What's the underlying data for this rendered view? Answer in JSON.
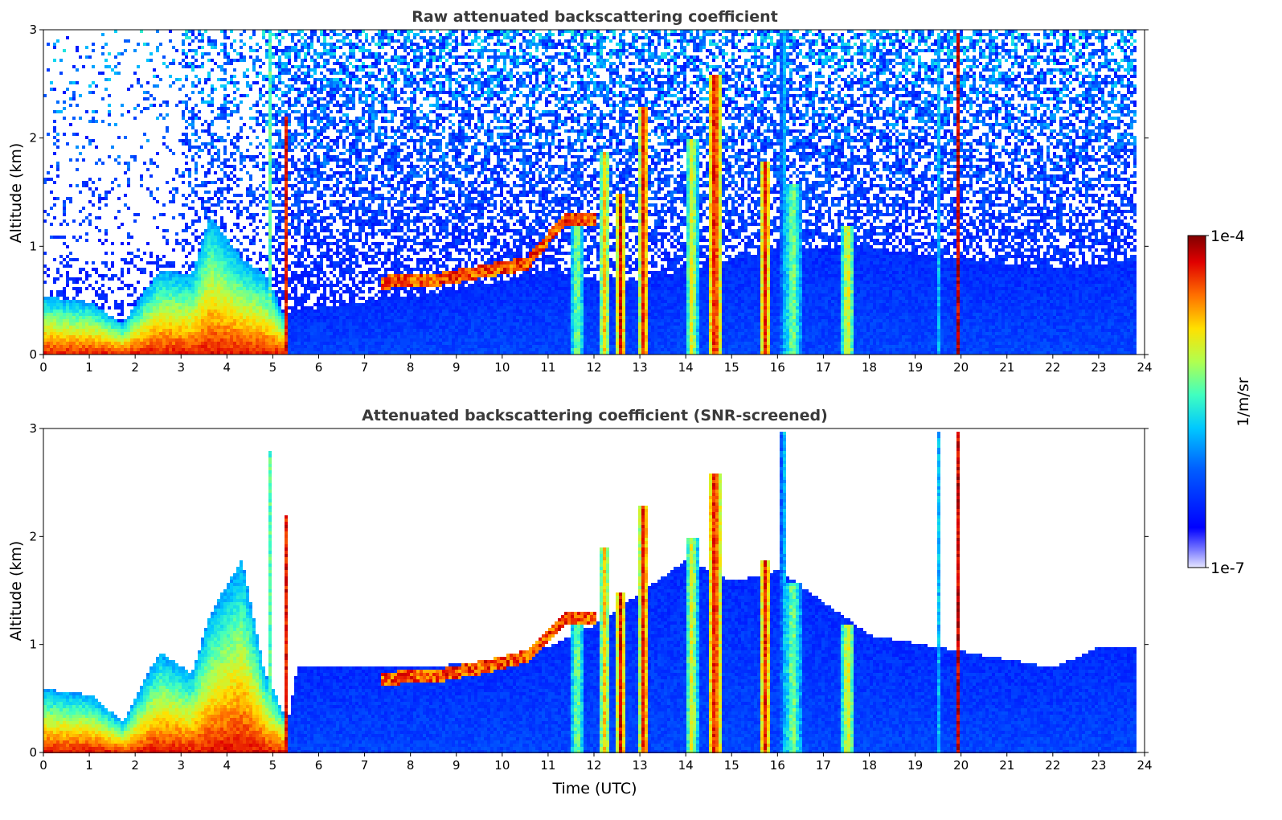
{
  "chart_data": [
    {
      "type": "heatmap",
      "title": "Raw attenuated backscattering coefficient",
      "xlabel": "",
      "ylabel": "Altitude (km)",
      "xlim": [
        0,
        24
      ],
      "ylim": [
        0,
        3
      ],
      "xticks": [
        "0",
        "1",
        "2",
        "3",
        "4",
        "5",
        "6",
        "7",
        "8",
        "9",
        "10",
        "11",
        "12",
        "13",
        "14",
        "15",
        "16",
        "17",
        "18",
        "19",
        "20",
        "21",
        "22",
        "23",
        "24"
      ],
      "yticks": [
        "0",
        "1",
        "2",
        "3"
      ],
      "noise": "high",
      "boundary_layer_top_km": [
        [
          0,
          0.55
        ],
        [
          1,
          0.5
        ],
        [
          1.7,
          0.3
        ],
        [
          2.5,
          0.8
        ],
        [
          3.2,
          0.75
        ],
        [
          3.6,
          1.3
        ],
        [
          4.3,
          0.9
        ],
        [
          4.8,
          0.75
        ],
        [
          5.2,
          0.4
        ],
        [
          6,
          0.45
        ],
        [
          8,
          0.55
        ],
        [
          10,
          0.7
        ],
        [
          11,
          0.8
        ],
        [
          12,
          0.7
        ],
        [
          13,
          0.7
        ],
        [
          14,
          0.8
        ],
        [
          15,
          0.9
        ],
        [
          16,
          1.0
        ],
        [
          17,
          1.0
        ],
        [
          18,
          1.0
        ],
        [
          20,
          0.9
        ],
        [
          22,
          0.8
        ],
        [
          24,
          0.9
        ]
      ],
      "cloud_base_layer": [
        [
          7.3,
          0.68
        ],
        [
          8.5,
          0.7
        ],
        [
          9.5,
          0.78
        ],
        [
          10.5,
          0.85
        ],
        [
          11.3,
          1.25
        ],
        [
          12.0,
          1.25
        ]
      ],
      "plumes": [
        {
          "t": 4.9,
          "top": 3.0,
          "w": 0.12,
          "lvl": 0.55
        },
        {
          "t": 5.25,
          "top": 2.2,
          "w": 0.1,
          "lvl": 0.95
        },
        {
          "t": 11.6,
          "top": 1.3,
          "w": 0.3,
          "lvl": 0.6
        },
        {
          "t": 12.2,
          "top": 1.9,
          "w": 0.25,
          "lvl": 0.75
        },
        {
          "t": 12.55,
          "top": 1.5,
          "w": 0.2,
          "lvl": 0.95
        },
        {
          "t": 13.05,
          "top": 2.3,
          "w": 0.2,
          "lvl": 0.95
        },
        {
          "t": 14.1,
          "top": 2.0,
          "w": 0.25,
          "lvl": 0.7
        },
        {
          "t": 14.6,
          "top": 2.6,
          "w": 0.3,
          "lvl": 0.95
        },
        {
          "t": 15.7,
          "top": 1.8,
          "w": 0.25,
          "lvl": 0.9
        },
        {
          "t": 16.3,
          "top": 1.6,
          "w": 0.35,
          "lvl": 0.6
        },
        {
          "t": 17.5,
          "top": 1.2,
          "w": 0.3,
          "lvl": 0.7
        },
        {
          "t": 16.1,
          "top": 3.0,
          "w": 0.12,
          "lvl": 0.45
        },
        {
          "t": 19.5,
          "top": 3.0,
          "w": 0.08,
          "lvl": 0.5
        },
        {
          "t": 19.9,
          "top": 3.0,
          "w": 0.05,
          "lvl": 0.95
        }
      ]
    },
    {
      "type": "heatmap",
      "title": "Attenuated backscattering coefficient (SNR-screened)",
      "xlabel": "Time (UTC)",
      "ylabel": "Altitude (km)",
      "xlim": [
        0,
        24
      ],
      "ylim": [
        0,
        3
      ],
      "xticks": [
        "0",
        "1",
        "2",
        "3",
        "4",
        "5",
        "6",
        "7",
        "8",
        "9",
        "10",
        "11",
        "12",
        "13",
        "14",
        "15",
        "16",
        "17",
        "18",
        "19",
        "20",
        "21",
        "22",
        "23",
        "24"
      ],
      "yticks": [
        "0",
        "1",
        "2",
        "3"
      ],
      "noise": "screened",
      "boundary_layer_top_km": [
        [
          0,
          0.6
        ],
        [
          1,
          0.55
        ],
        [
          1.7,
          0.3
        ],
        [
          2.5,
          0.95
        ],
        [
          3.2,
          0.75
        ],
        [
          3.6,
          1.3
        ],
        [
          4.3,
          1.8
        ],
        [
          4.8,
          0.75
        ],
        [
          5.3,
          0.3
        ],
        [
          5.5,
          0.8
        ],
        [
          7,
          0.8
        ],
        [
          8,
          0.8
        ],
        [
          9.5,
          0.85
        ],
        [
          10.5,
          0.95
        ],
        [
          11,
          1.0
        ],
        [
          12,
          1.2
        ],
        [
          13,
          1.5
        ],
        [
          14,
          1.8
        ],
        [
          15,
          1.6
        ],
        [
          16,
          1.7
        ],
        [
          17,
          1.4
        ],
        [
          18,
          1.1
        ],
        [
          20,
          0.95
        ],
        [
          22,
          0.8
        ],
        [
          23,
          1.0
        ],
        [
          24,
          1.0
        ]
      ],
      "cloud_base_layer": [
        [
          7.3,
          0.7
        ],
        [
          8.5,
          0.72
        ],
        [
          9.5,
          0.8
        ],
        [
          10.5,
          0.9
        ],
        [
          11.3,
          1.25
        ],
        [
          12.0,
          1.25
        ]
      ],
      "plumes": [
        {
          "t": 4.9,
          "top": 2.8,
          "w": 0.12,
          "lvl": 0.55
        },
        {
          "t": 5.25,
          "top": 2.2,
          "w": 0.1,
          "lvl": 0.95
        },
        {
          "t": 11.6,
          "top": 1.3,
          "w": 0.3,
          "lvl": 0.6
        },
        {
          "t": 12.2,
          "top": 1.9,
          "w": 0.25,
          "lvl": 0.75
        },
        {
          "t": 12.55,
          "top": 1.5,
          "w": 0.2,
          "lvl": 0.95
        },
        {
          "t": 13.05,
          "top": 2.3,
          "w": 0.2,
          "lvl": 0.95
        },
        {
          "t": 14.1,
          "top": 2.0,
          "w": 0.25,
          "lvl": 0.7
        },
        {
          "t": 14.6,
          "top": 2.6,
          "w": 0.3,
          "lvl": 0.95
        },
        {
          "t": 15.7,
          "top": 1.8,
          "w": 0.25,
          "lvl": 0.9
        },
        {
          "t": 16.3,
          "top": 1.6,
          "w": 0.35,
          "lvl": 0.6
        },
        {
          "t": 17.5,
          "top": 1.2,
          "w": 0.3,
          "lvl": 0.7
        },
        {
          "t": 16.1,
          "top": 3.0,
          "w": 0.12,
          "lvl": 0.45
        },
        {
          "t": 19.5,
          "top": 3.0,
          "w": 0.08,
          "lvl": 0.5
        },
        {
          "t": 19.9,
          "top": 3.0,
          "w": 0.05,
          "lvl": 0.95
        }
      ]
    }
  ],
  "colorbar": {
    "label": "1/m/sr",
    "max_label": "1e-4",
    "min_label": "1e-7",
    "colormap": "jet",
    "range": [
      1e-07,
      0.0001
    ],
    "scale": "log"
  }
}
